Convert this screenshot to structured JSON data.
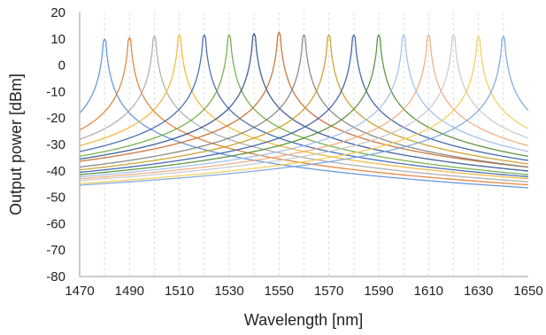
{
  "chart_data": {
    "type": "line",
    "xlabel": "Wavelength [nm]",
    "ylabel": "Output power [dBm]",
    "xlim": [
      1470,
      1650
    ],
    "ylim": [
      -80,
      20
    ],
    "xticks": [
      1470,
      1490,
      1510,
      1530,
      1550,
      1570,
      1590,
      1610,
      1630,
      1650
    ],
    "yticks": [
      20,
      10,
      0,
      -10,
      -20,
      -30,
      -40,
      -50,
      -60,
      -70,
      -80
    ],
    "xtick_labels": [
      "1470",
      "1490",
      "1510",
      "1530",
      "1550",
      "1570",
      "1590",
      "1610",
      "1630",
      "1650"
    ],
    "ytick_labels": [
      "20",
      "10",
      "0",
      "-10",
      "-20",
      "-30",
      "-40",
      "-50",
      "-60",
      "-70",
      "-80"
    ],
    "grid": "vertical dashed",
    "legend": "none",
    "series": [
      {
        "peak_wavelength": 1480,
        "peak_power": 10.0,
        "color": "#5b8fd6"
      },
      {
        "peak_wavelength": 1490,
        "peak_power": 10.5,
        "color": "#e07b2e"
      },
      {
        "peak_wavelength": 1500,
        "peak_power": 11.0,
        "color": "#a8a8a8"
      },
      {
        "peak_wavelength": 1510,
        "peak_power": 11.5,
        "color": "#f2b530"
      },
      {
        "peak_wavelength": 1520,
        "peak_power": 11.5,
        "color": "#3a62ad"
      },
      {
        "peak_wavelength": 1530,
        "peak_power": 11.5,
        "color": "#6aaa3e"
      },
      {
        "peak_wavelength": 1540,
        "peak_power": 12.0,
        "color": "#2e4f8e"
      },
      {
        "peak_wavelength": 1550,
        "peak_power": 12.5,
        "color": "#c8682a"
      },
      {
        "peak_wavelength": 1560,
        "peak_power": 11.5,
        "color": "#7e7e7e"
      },
      {
        "peak_wavelength": 1570,
        "peak_power": 11.5,
        "color": "#c79b1e"
      },
      {
        "peak_wavelength": 1580,
        "peak_power": 11.5,
        "color": "#3359a4"
      },
      {
        "peak_wavelength": 1590,
        "peak_power": 11.5,
        "color": "#4f8a2e"
      },
      {
        "peak_wavelength": 1600,
        "peak_power": 11.5,
        "color": "#9dbde8"
      },
      {
        "peak_wavelength": 1610,
        "peak_power": 11.5,
        "color": "#f0a878"
      },
      {
        "peak_wavelength": 1620,
        "peak_power": 11.5,
        "color": "#c6c6c6"
      },
      {
        "peak_wavelength": 1630,
        "peak_power": 11.0,
        "color": "#f5cb4f"
      },
      {
        "peak_wavelength": 1640,
        "peak_power": 11.0,
        "color": "#7aa3dd"
      }
    ]
  }
}
